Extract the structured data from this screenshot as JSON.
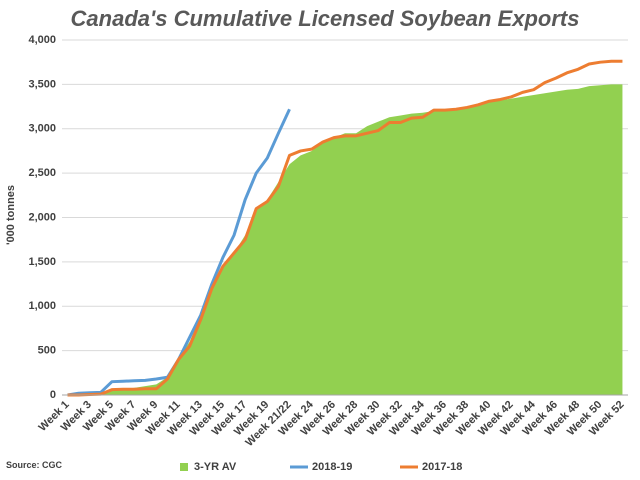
{
  "chart_data": {
    "type": "line",
    "title": "Canada's Cumulative Licensed Soybean Exports",
    "y_label": "'000 tonnes",
    "source": "Source: CGC",
    "categories": [
      "Week 1",
      null,
      "Week 3",
      null,
      "Week 5",
      null,
      "Week 7",
      null,
      "Week 9",
      null,
      "Week 11",
      null,
      "Week 13",
      null,
      "Week 15",
      null,
      "Week 17",
      null,
      "Week 19",
      null,
      "Week 21/22",
      null,
      "Week 24",
      null,
      "Week 26",
      null,
      "Week 28",
      null,
      "Week 30",
      null,
      "Week 32",
      null,
      "Week 34",
      null,
      "Week 36",
      null,
      "Week 38",
      null,
      "Week 40",
      null,
      "Week 42",
      null,
      "Week 44",
      null,
      "Week 46",
      null,
      "Week 48",
      null,
      "Week 50",
      null,
      "Week 52"
    ],
    "series": [
      {
        "name": "3-YR AV",
        "kind": "area",
        "color": "#92d050",
        "values": [
          0,
          5,
          10,
          20,
          50,
          70,
          80,
          100,
          120,
          200,
          420,
          600,
          900,
          1200,
          1450,
          1600,
          1800,
          2100,
          2200,
          2400,
          2600,
          2700,
          2750,
          2850,
          2900,
          2950,
          2950,
          3030,
          3080,
          3130,
          3150,
          3170,
          3180,
          3200,
          3210,
          3230,
          3250,
          3280,
          3300,
          3320,
          3340,
          3360,
          3380,
          3400,
          3420,
          3440,
          3450,
          3480,
          3490,
          3500,
          3500
        ]
      },
      {
        "name": "2018-19",
        "kind": "line",
        "color": "#5b9bd5",
        "values": [
          0,
          20,
          25,
          30,
          150,
          155,
          160,
          165,
          180,
          200,
          400,
          650,
          900,
          1250,
          1550,
          1800,
          2200,
          2500,
          2670,
          2950,
          3220,
          null,
          null,
          null,
          null,
          null,
          null,
          null,
          null,
          null,
          null,
          null,
          null,
          null,
          null,
          null,
          null,
          null,
          null,
          null,
          null,
          null,
          null,
          null,
          null,
          null,
          null,
          null,
          null,
          null,
          null
        ]
      },
      {
        "name": "2017-18",
        "kind": "line",
        "color": "#ed7d31",
        "values": [
          0,
          0,
          5,
          10,
          60,
          65,
          65,
          70,
          70,
          180,
          400,
          550,
          850,
          1200,
          1450,
          1600,
          1750,
          2100,
          2180,
          2350,
          2700,
          2750,
          2770,
          2850,
          2900,
          2920,
          2920,
          2950,
          2980,
          3070,
          3070,
          3120,
          3130,
          3210,
          3210,
          3220,
          3240,
          3270,
          3310,
          3330,
          3360,
          3410,
          3440,
          3520,
          3570,
          3630,
          3670,
          3730,
          3750,
          3760,
          3760
        ]
      }
    ],
    "ylim": [
      0,
      4000
    ],
    "yticks": [
      0,
      500,
      {
        "value": 1000,
        "label": "1,000"
      },
      {
        "value": 1500,
        "label": "1,500"
      },
      {
        "value": 2000,
        "label": "2,000"
      },
      {
        "value": 2500,
        "label": "2,500"
      },
      {
        "value": 3000,
        "label": "3,000"
      },
      {
        "value": 3500,
        "label": "3,500"
      },
      {
        "value": 4000,
        "label": "4,000"
      }
    ],
    "grid": true
  }
}
